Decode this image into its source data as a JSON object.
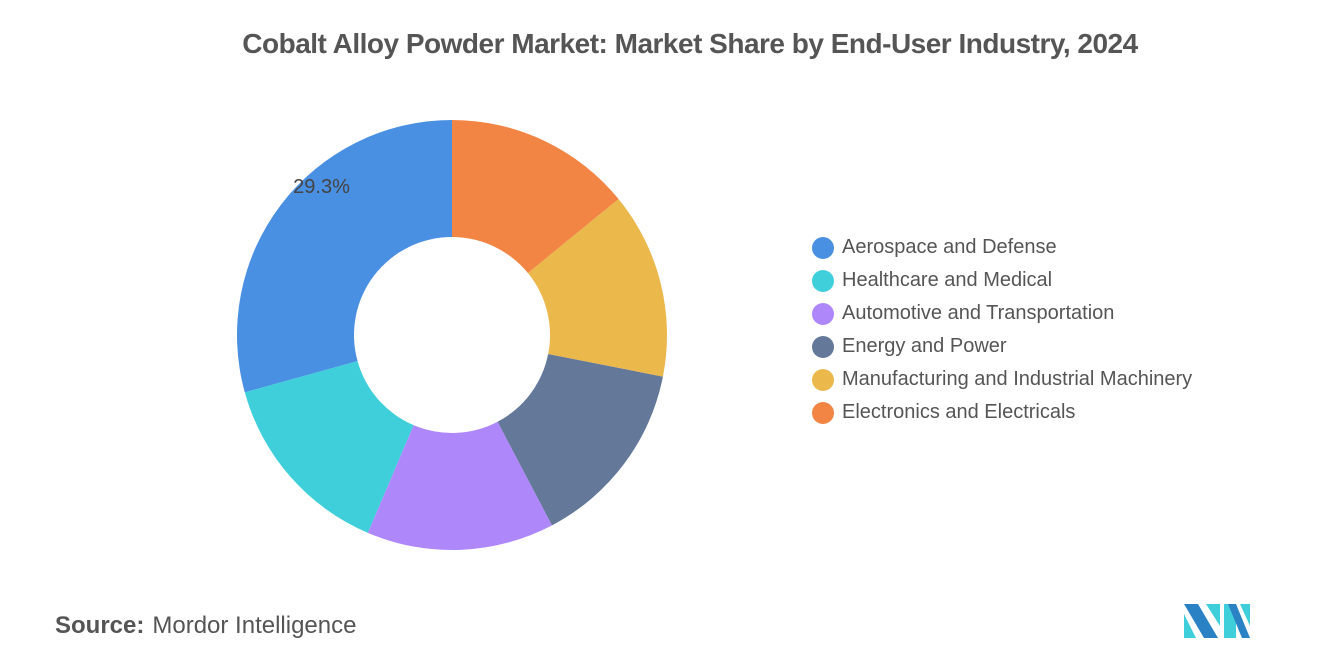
{
  "chart_data": {
    "type": "pie",
    "donut": true,
    "title": "Cobalt Alloy Powder Market: Market Share by End-User Industry, 2024",
    "categories": [
      "Aerospace and Defense",
      "Healthcare and Medical",
      "Automotive and Transportation",
      "Energy and Power",
      "Manufacturing and Industrial Machinery",
      "Electronics and Electricals"
    ],
    "values": [
      29.3,
      14.3,
      14.1,
      14.2,
      14.0,
      14.1
    ],
    "colors": [
      "#4a90e2",
      "#3fcfdb",
      "#ae88fb",
      "#647899",
      "#ebb84c",
      "#f28444"
    ],
    "data_labels": [
      "29.3%",
      "",
      "",
      "",
      "",
      ""
    ],
    "legend_position": "right"
  },
  "source": {
    "label": "Source:",
    "value": "Mordor Intelligence"
  },
  "logo": {
    "text": "Mordor Intelligence"
  }
}
